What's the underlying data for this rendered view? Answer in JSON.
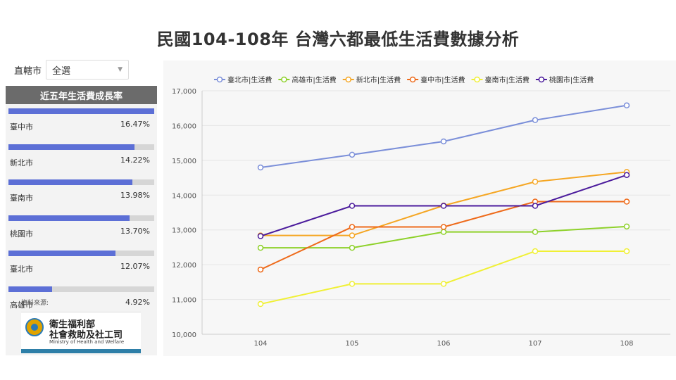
{
  "page": {
    "title": "民國104-108年 台灣六都最低生活費數據分析"
  },
  "filter": {
    "label": "直轄市",
    "selected": "全選"
  },
  "growth_panel": {
    "title": "近五年生活費成長率",
    "items": [
      {
        "name": "臺中市",
        "value_text": "16.47%",
        "value": 16.47
      },
      {
        "name": "新北市",
        "value_text": "14.22%",
        "value": 14.22
      },
      {
        "name": "臺南市",
        "value_text": "13.98%",
        "value": 13.98
      },
      {
        "name": "桃園市",
        "value_text": "13.70%",
        "value": 13.7
      },
      {
        "name": "臺北市",
        "value_text": "12.07%",
        "value": 12.07
      },
      {
        "name": "高雄市",
        "value_text": "4.92%",
        "value": 4.92
      }
    ]
  },
  "source": {
    "label": "資料來源:",
    "org_line1": "衛生福利部",
    "org_line2": "社會救助及社工司",
    "org_en": "Ministry of Health and Welfare"
  },
  "chart_data": {
    "type": "line",
    "categories": [
      "104",
      "105",
      "106",
      "107",
      "108"
    ],
    "ylim": [
      10000,
      17000
    ],
    "yticks": [
      10000,
      11000,
      12000,
      13000,
      14000,
      15000,
      16000,
      17000
    ],
    "ytick_labels": [
      "10,000",
      "11,000",
      "12,000",
      "13,000",
      "14,000",
      "15,000",
      "16,000",
      "17,000"
    ],
    "legend_position": "top",
    "grid": true,
    "series": [
      {
        "name": "臺北市|生活費",
        "color": "#7b8fd9",
        "values": [
          14794,
          15162,
          15544,
          16157,
          16580
        ]
      },
      {
        "name": "高雄市|生活費",
        "color": "#8ed12a",
        "values": [
          12485,
          12485,
          12941,
          12941,
          13099
        ]
      },
      {
        "name": "新北市|生活費",
        "color": "#f5a623",
        "values": [
          12840,
          12840,
          13700,
          14385,
          14666
        ]
      },
      {
        "name": "臺中市|生活費",
        "color": "#ee6a1a",
        "values": [
          11860,
          13084,
          13084,
          13813,
          13813
        ]
      },
      {
        "name": "臺南市|生活費",
        "color": "#f0f035",
        "values": [
          10869,
          11448,
          11448,
          12388,
          12388
        ]
      },
      {
        "name": "桃園市|生活費",
        "color": "#4b1b9c",
        "values": [
          12821,
          13692,
          13692,
          13692,
          14578
        ]
      }
    ]
  }
}
